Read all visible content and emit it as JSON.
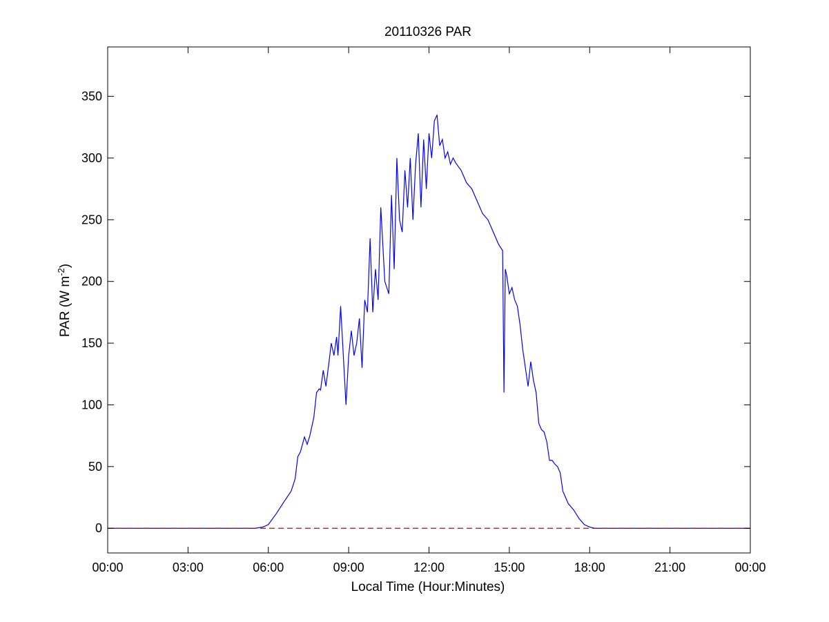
{
  "chart_data": {
    "type": "line",
    "title": "20110326 PAR",
    "xlabel": "Local Time (Hour:Minutes)",
    "ylabel": {
      "prefix": "PAR (W m",
      "sup": "-2",
      "suffix": ")"
    },
    "xlim": [
      0,
      24
    ],
    "ylim": [
      -20,
      390
    ],
    "x_ticks": [
      0,
      3,
      6,
      9,
      12,
      15,
      18,
      21,
      24
    ],
    "x_tick_labels": [
      "00:00",
      "03:00",
      "06:00",
      "09:00",
      "12:00",
      "15:00",
      "18:00",
      "21:00",
      "00:00"
    ],
    "y_ticks": [
      0,
      50,
      100,
      150,
      200,
      250,
      300,
      350
    ],
    "y_tick_labels": [
      "0",
      "50",
      "100",
      "150",
      "200",
      "250",
      "300",
      "350"
    ],
    "grid": false,
    "series": [
      {
        "color": "#0000ff",
        "style": "solid",
        "x": [
          0,
          5.5,
          5.8,
          6.0,
          6.3,
          6.6,
          6.85,
          7.0,
          7.1,
          7.2,
          7.35,
          7.45,
          7.55,
          7.7,
          7.8,
          7.9,
          7.95,
          8.05,
          8.15,
          8.25,
          8.35,
          8.45,
          8.55,
          8.6,
          8.7,
          8.8,
          8.9,
          9.0,
          9.1,
          9.2,
          9.3,
          9.4,
          9.5,
          9.6,
          9.7,
          9.8,
          9.9,
          10.0,
          10.1,
          10.2,
          10.35,
          10.5,
          10.6,
          10.7,
          10.8,
          10.9,
          11.0,
          11.1,
          11.2,
          11.3,
          11.4,
          11.5,
          11.6,
          11.7,
          11.8,
          11.9,
          12.0,
          12.1,
          12.2,
          12.3,
          12.4,
          12.5,
          12.6,
          12.7,
          12.8,
          12.9,
          13.0,
          13.2,
          13.4,
          13.6,
          13.8,
          14.0,
          14.2,
          14.4,
          14.6,
          14.75,
          14.8,
          14.85,
          14.9,
          15.0,
          15.1,
          15.2,
          15.3,
          15.4,
          15.5,
          15.6,
          15.7,
          15.8,
          15.9,
          16.0,
          16.1,
          16.2,
          16.3,
          16.4,
          16.5,
          16.6,
          16.7,
          16.8,
          16.9,
          17.0,
          17.1,
          17.2,
          17.4,
          17.6,
          17.8,
          18.0,
          18.2,
          18.4,
          18.6,
          19.0,
          21.0,
          24.0
        ],
        "y": [
          0,
          0,
          1,
          3,
          12,
          22,
          30,
          40,
          58,
          62,
          74,
          68,
          75,
          90,
          110,
          113,
          112,
          128,
          115,
          132,
          150,
          140,
          155,
          140,
          180,
          140,
          100,
          140,
          160,
          140,
          150,
          170,
          130,
          185,
          175,
          235,
          175,
          210,
          185,
          260,
          200,
          190,
          270,
          210,
          300,
          250,
          240,
          290,
          260,
          300,
          250,
          295,
          320,
          260,
          315,
          275,
          320,
          300,
          330,
          335,
          310,
          315,
          300,
          305,
          295,
          300,
          296,
          290,
          280,
          275,
          265,
          255,
          250,
          240,
          230,
          225,
          110,
          210,
          205,
          190,
          195,
          185,
          180,
          165,
          145,
          130,
          115,
          135,
          120,
          110,
          85,
          80,
          78,
          70,
          55,
          55,
          52,
          50,
          45,
          30,
          25,
          20,
          15,
          8,
          3,
          1,
          0,
          0,
          0,
          0,
          0,
          0
        ]
      },
      {
        "color": "#cc0000",
        "style": "dashed",
        "x": [
          0,
          24
        ],
        "y": [
          0,
          0
        ]
      }
    ]
  }
}
